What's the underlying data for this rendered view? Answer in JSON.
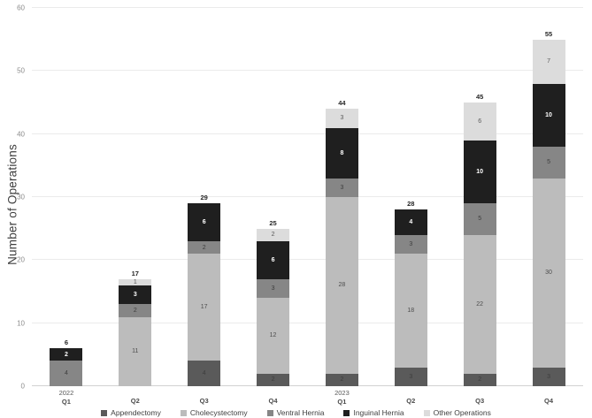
{
  "chart_data": {
    "type": "bar",
    "stacked": true,
    "title": "",
    "ylabel": "Number of Operations",
    "xlabel": "",
    "ylim": [
      0,
      60
    ],
    "yticks": [
      0,
      10,
      20,
      30,
      40,
      50,
      60
    ],
    "grid": "horizontal",
    "legend_position": "bottom",
    "categories": [
      {
        "year": "2022",
        "quarter": "Q1"
      },
      {
        "year": "",
        "quarter": "Q2"
      },
      {
        "year": "",
        "quarter": "Q3"
      },
      {
        "year": "",
        "quarter": "Q4"
      },
      {
        "year": "2023",
        "quarter": "Q1"
      },
      {
        "year": "",
        "quarter": "Q2"
      },
      {
        "year": "",
        "quarter": "Q3"
      },
      {
        "year": "",
        "quarter": "Q4"
      }
    ],
    "totals": [
      6,
      17,
      29,
      25,
      44,
      28,
      45,
      55
    ],
    "series": [
      {
        "name": "Appendectomy",
        "color": "#5a5a5a",
        "label_color": "#3d3d3d",
        "values": [
          0,
          0,
          4,
          2,
          2,
          3,
          2,
          3
        ]
      },
      {
        "name": "Cholecystectomy",
        "color": "#bcbcbc",
        "label_color": "#4d4d4d",
        "values": [
          0,
          11,
          17,
          12,
          28,
          18,
          22,
          30
        ]
      },
      {
        "name": "Ventral Hernia",
        "color": "#868686",
        "label_color": "#3d3d3d",
        "values": [
          4,
          2,
          2,
          3,
          3,
          3,
          5,
          5
        ]
      },
      {
        "name": "Inguinal Hernia",
        "color": "#1f1f1f",
        "label_color": "#ffffff",
        "values": [
          2,
          3,
          6,
          6,
          8,
          4,
          10,
          10
        ]
      },
      {
        "name": "Other Operations",
        "color": "#dcdcdc",
        "label_color": "#5a5a5a",
        "values": [
          0,
          1,
          0,
          2,
          3,
          0,
          6,
          7
        ]
      }
    ]
  }
}
